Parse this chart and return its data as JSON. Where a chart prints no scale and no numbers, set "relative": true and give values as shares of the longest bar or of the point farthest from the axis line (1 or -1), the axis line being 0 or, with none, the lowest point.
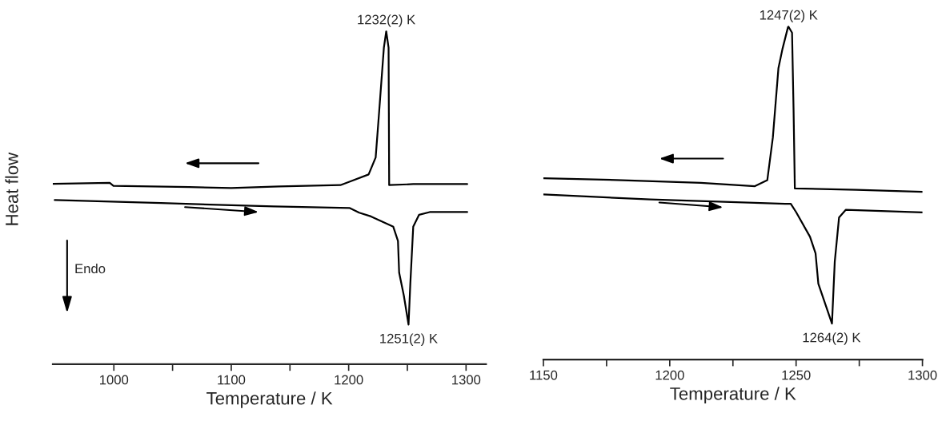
{
  "chart_data": [
    {
      "type": "line",
      "relative": true,
      "xlabel": "Temperature / K",
      "ylabel": "Heat flow",
      "xlim": [
        948,
        1317
      ],
      "xticks": [
        1000,
        {
          "value": 1050,
          "label": null
        },
        1100,
        {
          "value": 1150,
          "label": null
        },
        1200,
        {
          "value": 1250,
          "label": null
        },
        1300
      ],
      "tick_labels": "x",
      "grid": false,
      "legend": false,
      "series": [
        {
          "color": "#000000",
          "x": [
            948,
            996.5,
            999.6,
            1064,
            1100,
            1141,
            1193,
            1202,
            1217,
            1223,
            1226,
            1230,
            1232,
            1234,
            1234.5,
            1255,
            1301
          ],
          "values": [
            0.542,
            0.545,
            0.536,
            0.532,
            0.529,
            0.534,
            0.538,
            0.55,
            0.57,
            0.621,
            0.76,
            0.951,
            1.0,
            0.951,
            0.538,
            0.541,
            0.541
          ]
        },
        {
          "color": "#000000",
          "x": [
            949.6,
            1040,
            1136,
            1201,
            1209,
            1219,
            1238,
            1242,
            1243,
            1247,
            1251,
            1252.5,
            1255,
            1260,
            1269,
            1301
          ],
          "values": [
            0.493,
            0.484,
            0.474,
            0.469,
            0.455,
            0.444,
            0.413,
            0.37,
            0.275,
            0.206,
            0.119,
            0.24,
            0.413,
            0.449,
            0.457,
            0.457
          ]
        }
      ],
      "annotations": [
        {
          "text": "1232(2) K",
          "x": 1232,
          "y": 1.0
        },
        {
          "text": "1251(2) K",
          "x": 1251,
          "y": 0.119
        },
        "Endo"
      ]
    },
    {
      "type": "line",
      "relative": true,
      "xlabel": "Temperature / K",
      "xlim": [
        1150,
        1300
      ],
      "xticks": [
        1150,
        {
          "value": 1175,
          "label": null
        },
        1200,
        {
          "value": 1225,
          "label": null
        },
        1250,
        {
          "value": 1275,
          "label": null
        },
        1300
      ],
      "tick_labels": "x",
      "grid": false,
      "legend": false,
      "series": [
        {
          "color": "#000000",
          "x": [
            1150,
            1181.3,
            1212.3,
            1233.7,
            1238.6,
            1240.8,
            1243,
            1244.6,
            1246.8,
            1247,
            1248.4,
            1249,
            1249.5,
            1274,
            1300
          ],
          "values": [
            0.545,
            0.539,
            0.531,
            0.521,
            0.539,
            0.667,
            0.875,
            0.933,
            0.999,
            1.0,
            0.982,
            0.75,
            0.514,
            0.51,
            0.504
          ]
        },
        {
          "color": "#000000",
          "x": [
            1150,
            1192.2,
            1245.7,
            1247.9,
            1250,
            1255.5,
            1257.7,
            1258.8,
            1264.2,
            1265.3,
            1267,
            1269.7,
            1300
          ],
          "values": [
            0.496,
            0.481,
            0.468,
            0.468,
            0.443,
            0.369,
            0.319,
            0.228,
            0.108,
            0.294,
            0.427,
            0.45,
            0.442
          ]
        }
      ],
      "annotations": [
        {
          "text": "1247(2) K",
          "x": 1247,
          "y": 1.0
        },
        {
          "text": "1264(2) K",
          "x": 1264,
          "y": 0.108
        }
      ]
    }
  ]
}
